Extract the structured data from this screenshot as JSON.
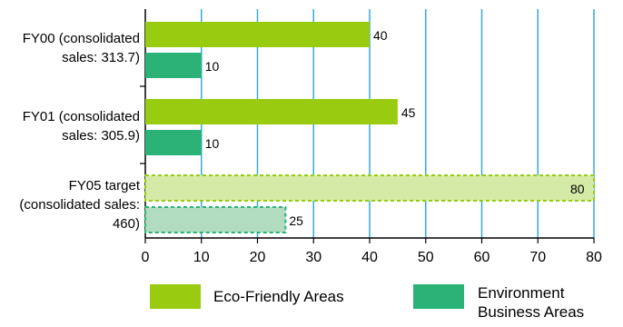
{
  "chart_data": {
    "type": "bar",
    "orientation": "horizontal",
    "categories": [
      "FY00 (consolidated\nsales: 313.7)",
      "FY01 (consolidated\nsales: 305.9)",
      "FY05 target\n(consolidated sales:\n460)"
    ],
    "series": [
      {
        "name": "Eco-Friendly Areas",
        "values": [
          40,
          45,
          80
        ],
        "color": "#99cc11"
      },
      {
        "name": "Environment\nBusiness Areas",
        "values": [
          10,
          10,
          25
        ],
        "color": "#2bb377"
      }
    ],
    "target_category_index": 2,
    "target_colors": [
      "#d4eaa6",
      "#b1dcc0"
    ],
    "xlim": [
      0,
      80
    ],
    "xticks": [
      "0",
      "10",
      "20",
      "30",
      "40",
      "50",
      "60",
      "70",
      "80"
    ],
    "grid": true,
    "gridline_color": "#33aadd",
    "legend_position": "bottom"
  }
}
